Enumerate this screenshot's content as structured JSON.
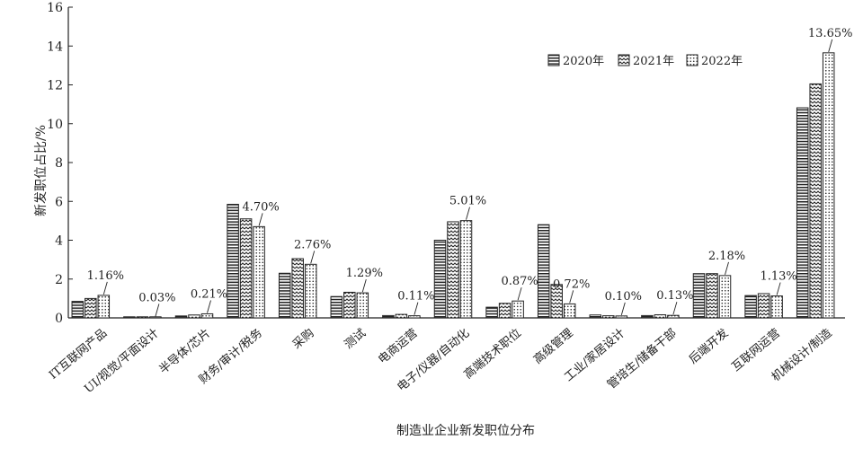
{
  "chart_data": {
    "type": "bar",
    "xlabel": "制造业企业新发职位分布",
    "ylabel": "新发职位占比/%",
    "ylim": [
      0,
      16
    ],
    "yticks": [
      0,
      2,
      4,
      6,
      8,
      10,
      12,
      14,
      16
    ],
    "legend_position": "top-right",
    "grid": false,
    "categories": [
      "IT互联网产品",
      "UI/视觉/平面设计",
      "半导体/芯片",
      "财务/审计/税务",
      "采购",
      "测试",
      "电商运营",
      "电子/仪器/自动化",
      "高端技术职位",
      "高级管理",
      "工业/家居设计",
      "管培生/储备干部",
      "后端开发",
      "互联网运营",
      "机械设计/制造"
    ],
    "series": [
      {
        "name": "2020年",
        "pattern": "horizontal-lines",
        "values": [
          0.85,
          0.05,
          0.1,
          5.85,
          2.3,
          1.1,
          0.12,
          4.0,
          0.55,
          4.8,
          0.15,
          0.12,
          2.28,
          1.15,
          10.82
        ]
      },
      {
        "name": "2021年",
        "pattern": "zigzag",
        "values": [
          1.0,
          0.04,
          0.15,
          5.1,
          3.05,
          1.32,
          0.18,
          4.95,
          0.75,
          1.72,
          0.11,
          0.16,
          2.28,
          1.25,
          12.05
        ]
      },
      {
        "name": "2022年",
        "pattern": "dots",
        "values": [
          1.16,
          0.03,
          0.21,
          4.7,
          2.76,
          1.29,
          0.11,
          5.01,
          0.87,
          0.72,
          0.1,
          0.13,
          2.18,
          1.13,
          13.65
        ]
      }
    ],
    "annotations": [
      "1.16%",
      "0.03%",
      "0.21%",
      "4.70%",
      "2.76%",
      "1.29%",
      "0.11%",
      "5.01%",
      "0.87%",
      "0.72%",
      "0.10%",
      "0.13%",
      "2.18%",
      "1.13%",
      "13.65%"
    ]
  }
}
